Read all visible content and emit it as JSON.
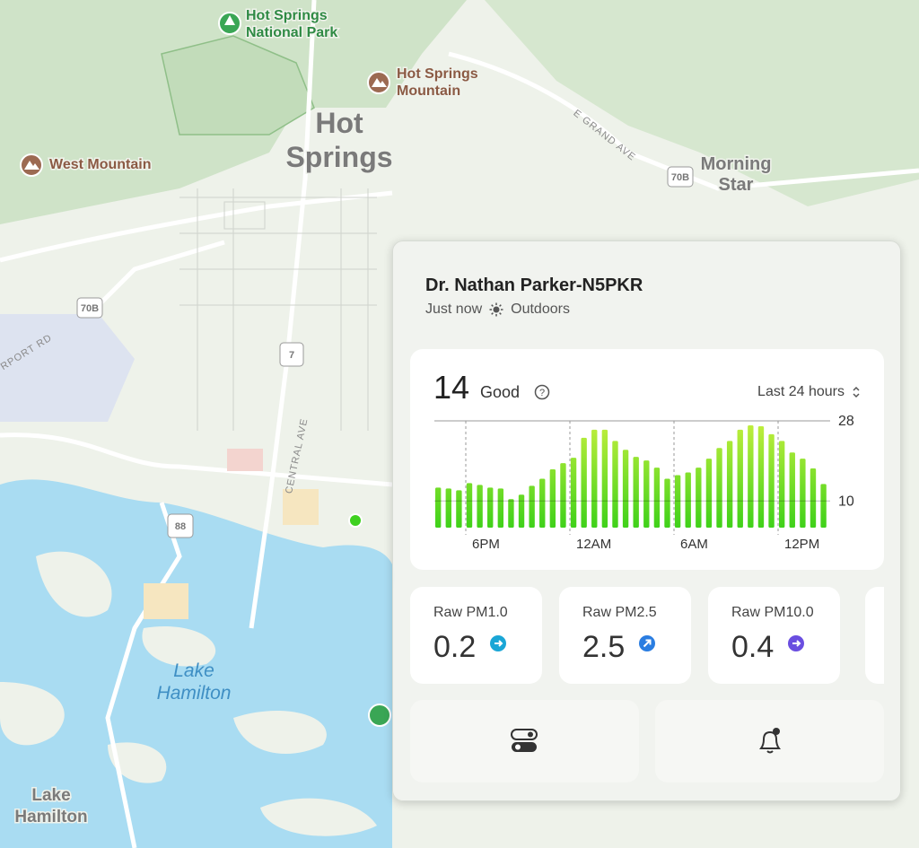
{
  "map": {
    "labels": [
      {
        "lines": [
          "Hot Springs",
          "National Park"
        ]
      },
      {
        "lines": [
          "Hot Springs",
          "Mountain"
        ]
      },
      {
        "lines": [
          "Hot",
          "Springs"
        ]
      },
      {
        "lines": [
          "West Mountain"
        ]
      },
      {
        "lines": [
          "Morning",
          "Star"
        ]
      },
      {
        "lines": [
          "Lake",
          "Hamilton"
        ]
      },
      {
        "lines": [
          "Lake",
          "Hamilton"
        ]
      }
    ],
    "roads": [
      "E GRAND AVE",
      "CENTRAL AVE",
      "RPORT RD"
    ],
    "shields": [
      "70B",
      "70B",
      "7",
      "88"
    ]
  },
  "panel": {
    "title": "Dr. Nathan Parker-N5PKR",
    "updated": "Just now",
    "location": "Outdoors",
    "aqi": 14,
    "status": "Good",
    "range": "Last 24 hours",
    "chart": {
      "type": "bar",
      "values": [
        13,
        12.8,
        12.4,
        14,
        13.6,
        13,
        12.8,
        10.4,
        11.4,
        13.4,
        15,
        17.1,
        18.5,
        19.7,
        24.2,
        26,
        26,
        23.5,
        21.5,
        19.9,
        19.1,
        17.5,
        15,
        15.8,
        16.4,
        17.5,
        19.5,
        21.9,
        23.5,
        26,
        27,
        26.8,
        25,
        23.5,
        20.9,
        19.5,
        17.3,
        13.8
      ],
      "ylim": [
        4,
        28
      ],
      "yticks": [
        10,
        28
      ],
      "xlabels": [
        "6PM",
        "12AM",
        "6AM",
        "12PM"
      ]
    },
    "metrics": [
      {
        "label": "Raw PM1.0",
        "value": 0.2
      },
      {
        "label": "Raw PM2.5",
        "value": 2.5
      },
      {
        "label": "Raw PM10.0",
        "value": 0.4
      }
    ]
  }
}
